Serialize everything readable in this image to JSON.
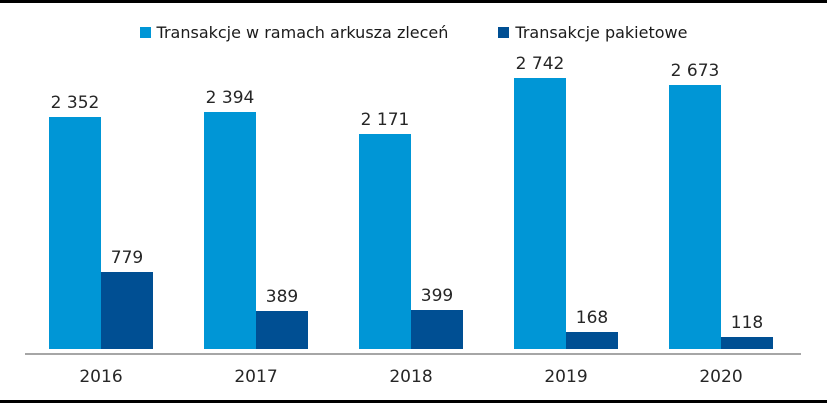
{
  "chart_data": {
    "type": "bar",
    "title": "",
    "categories": [
      "2016",
      "2017",
      "2018",
      "2019",
      "2020"
    ],
    "series": [
      {
        "name": "Transakcje w ramach arkusza zleceń",
        "color": "#0096D6",
        "values": [
          2352,
          2394,
          2171,
          2742,
          2673
        ],
        "labels": [
          "2 352",
          "2 394",
          "2 171",
          "2 742",
          "2 673"
        ]
      },
      {
        "name": "Transakcje pakietowe",
        "color": "#004F93",
        "values": [
          779,
          389,
          399,
          168,
          118
        ],
        "labels": [
          "779",
          "389",
          "399",
          "168",
          "118"
        ]
      }
    ],
    "ylim": [
      0,
      2742
    ],
    "xlabel": "",
    "ylabel": "",
    "grid": false,
    "legend_position": "top",
    "data_labels": true,
    "axis_line_color": "#A6A6A6",
    "label_color": "#262626"
  }
}
